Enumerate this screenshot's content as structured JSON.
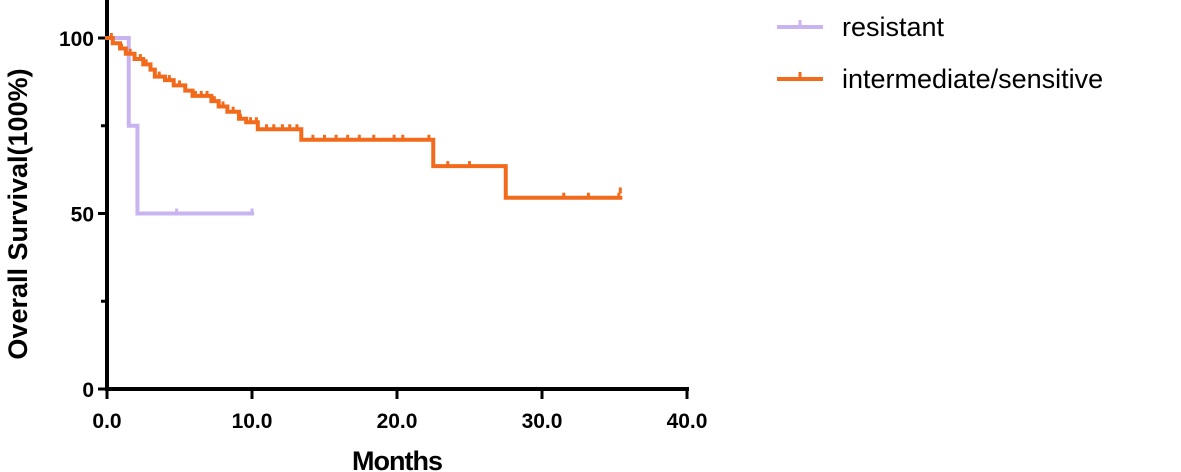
{
  "chart_data": {
    "type": "line",
    "title": "",
    "xlabel": "Months",
    "ylabel": "Overall Survival(100%)",
    "xlim": [
      0,
      40
    ],
    "ylim": [
      0,
      100
    ],
    "x_ticks": [
      0,
      10,
      20,
      30,
      40
    ],
    "x_tick_labels": [
      "0.0",
      "10.0",
      "20.0",
      "30.0",
      "40.0"
    ],
    "y_ticks": [
      0,
      50,
      100
    ],
    "y_tick_labels": [
      "0",
      "50",
      "100"
    ],
    "y_minor_ticks": [
      25,
      75
    ],
    "grid": false,
    "legend": "top-right",
    "series": [
      {
        "name": "resistant",
        "color": "#c8b4f0",
        "steps": [
          [
            0,
            100
          ],
          [
            1.5,
            75
          ],
          [
            2.1,
            50
          ],
          [
            10.0,
            50
          ]
        ],
        "censored": [
          [
            4.8,
            50
          ],
          [
            10.0,
            50
          ]
        ]
      },
      {
        "name": "intermediate/sensitive",
        "color": "#f26a1b",
        "steps": [
          [
            0,
            100
          ],
          [
            0.4,
            98.5
          ],
          [
            0.9,
            97
          ],
          [
            1.3,
            95.5
          ],
          [
            1.9,
            94
          ],
          [
            2.5,
            92.5
          ],
          [
            3.0,
            91
          ],
          [
            3.3,
            89
          ],
          [
            4.0,
            88
          ],
          [
            4.6,
            86.5
          ],
          [
            5.4,
            85
          ],
          [
            5.9,
            83.5
          ],
          [
            7.2,
            82
          ],
          [
            7.7,
            80.5
          ],
          [
            8.3,
            79
          ],
          [
            9.1,
            77
          ],
          [
            9.6,
            76
          ],
          [
            10.4,
            74
          ],
          [
            13.4,
            71
          ],
          [
            22.5,
            63.5
          ],
          [
            27.5,
            54.5
          ],
          [
            35.4,
            54.5
          ]
        ],
        "censored": [
          [
            0.3,
            100
          ],
          [
            1.0,
            97
          ],
          [
            1.6,
            95.5
          ],
          [
            2.3,
            94
          ],
          [
            2.7,
            92.5
          ],
          [
            3.6,
            89
          ],
          [
            4.3,
            88
          ],
          [
            5.0,
            86.5
          ],
          [
            6.1,
            83.5
          ],
          [
            6.5,
            83.5
          ],
          [
            6.9,
            83.5
          ],
          [
            7.4,
            82
          ],
          [
            8.0,
            80.5
          ],
          [
            8.7,
            79
          ],
          [
            9.2,
            77
          ],
          [
            9.9,
            76
          ],
          [
            10.3,
            76
          ],
          [
            11.0,
            74
          ],
          [
            11.5,
            74
          ],
          [
            12.1,
            74
          ],
          [
            12.6,
            74
          ],
          [
            13.1,
            74
          ],
          [
            14.2,
            71
          ],
          [
            15.0,
            71
          ],
          [
            15.8,
            71
          ],
          [
            16.6,
            71
          ],
          [
            17.4,
            71
          ],
          [
            18.4,
            71
          ],
          [
            19.8,
            71
          ],
          [
            20.4,
            71
          ],
          [
            22.2,
            71
          ],
          [
            23.5,
            63.5
          ],
          [
            25.0,
            63.5
          ],
          [
            31.5,
            54.5
          ],
          [
            33.2,
            54.5
          ],
          [
            35.3,
            54.5
          ],
          [
            35.4,
            56
          ]
        ]
      }
    ]
  }
}
